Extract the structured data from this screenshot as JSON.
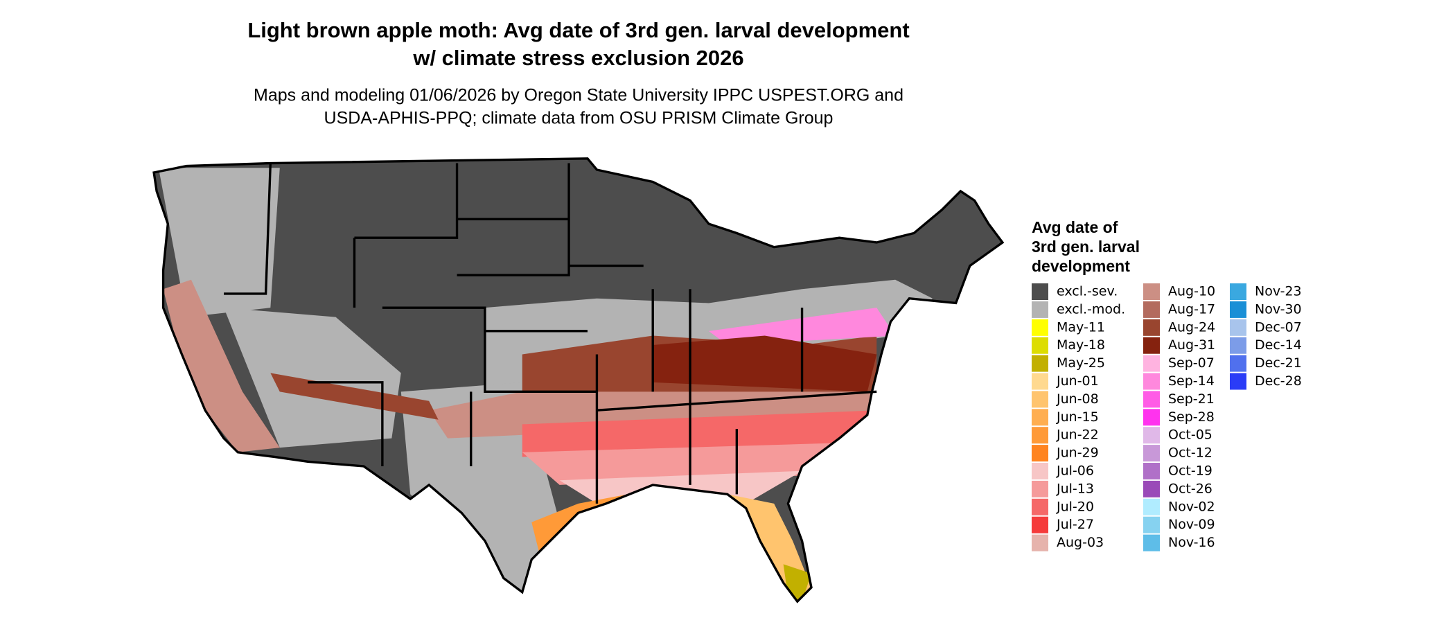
{
  "title": [
    "Light brown apple moth: Avg date of 3rd gen. larval development",
    "w/ climate stress exclusion 2026"
  ],
  "subtitle": [
    "Maps and modeling 01/06/2026 by Oregon State University IPPC USPEST.ORG and",
    "USDA-APHIS-PPQ; climate data from OSU PRISM Climate Group"
  ],
  "legend": {
    "title": [
      "Avg date of",
      "3rd gen. larval",
      "development"
    ],
    "items": [
      {
        "label": "excl.-sev.",
        "color": "#4d4d4d"
      },
      {
        "label": "excl.-mod.",
        "color": "#b3b3b3"
      },
      {
        "label": "May-11",
        "color": "#ffff00"
      },
      {
        "label": "May-18",
        "color": "#dddd00"
      },
      {
        "label": "May-25",
        "color": "#c2b000"
      },
      {
        "label": "Jun-01",
        "color": "#ffd98f"
      },
      {
        "label": "Jun-08",
        "color": "#ffc46e"
      },
      {
        "label": "Jun-15",
        "color": "#ffae50"
      },
      {
        "label": "Jun-22",
        "color": "#ff9a38"
      },
      {
        "label": "Jun-29",
        "color": "#ff8420"
      },
      {
        "label": "Jul-06",
        "color": "#f7c6c6"
      },
      {
        "label": "Jul-13",
        "color": "#f59a9a"
      },
      {
        "label": "Jul-20",
        "color": "#f56868"
      },
      {
        "label": "Jul-27",
        "color": "#f53b3b"
      },
      {
        "label": "Aug-03",
        "color": "#e6b3ac"
      },
      {
        "label": "Aug-10",
        "color": "#cc8f84"
      },
      {
        "label": "Aug-17",
        "color": "#b36b5e"
      },
      {
        "label": "Aug-24",
        "color": "#99452f"
      },
      {
        "label": "Aug-31",
        "color": "#85220f"
      },
      {
        "label": "Sep-07",
        "color": "#ffb3e0"
      },
      {
        "label": "Sep-14",
        "color": "#ff88dd"
      },
      {
        "label": "Sep-21",
        "color": "#ff5ce6"
      },
      {
        "label": "Sep-28",
        "color": "#ff33ee"
      },
      {
        "label": "Oct-05",
        "color": "#e0b8e8"
      },
      {
        "label": "Oct-12",
        "color": "#c898d8"
      },
      {
        "label": "Oct-19",
        "color": "#b070c8"
      },
      {
        "label": "Oct-26",
        "color": "#9a4ab8"
      },
      {
        "label": "Nov-02",
        "color": "#b0ecff"
      },
      {
        "label": "Nov-09",
        "color": "#86d2f0"
      },
      {
        "label": "Nov-16",
        "color": "#5ebde8"
      },
      {
        "label": "Nov-23",
        "color": "#3aa8e0"
      },
      {
        "label": "Nov-30",
        "color": "#1a8fd6"
      },
      {
        "label": "Dec-07",
        "color": "#a8c4ec"
      },
      {
        "label": "Dec-14",
        "color": "#7c9ce8"
      },
      {
        "label": "Dec-21",
        "color": "#5070ee"
      },
      {
        "label": "Dec-28",
        "color": "#2a3cf7"
      }
    ]
  }
}
